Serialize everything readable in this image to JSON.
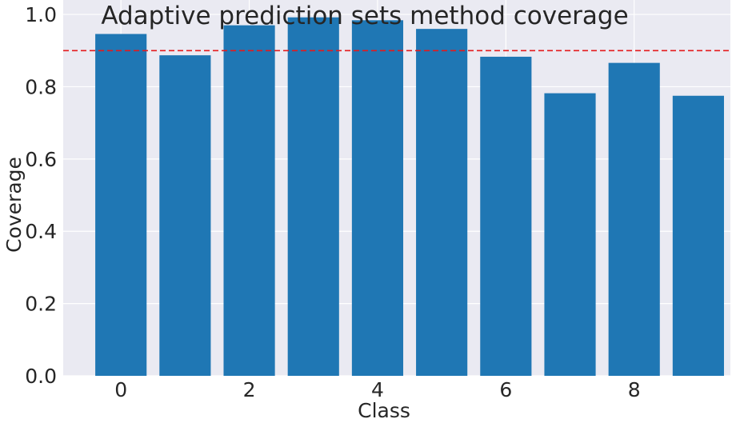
{
  "chart_data": {
    "type": "bar",
    "title": "Adaptive prediction sets method coverage",
    "xlabel": "Class",
    "ylabel": "Coverage",
    "categories": [
      0,
      1,
      2,
      3,
      4,
      5,
      6,
      7,
      8,
      9
    ],
    "values": [
      0.946,
      0.887,
      0.97,
      0.992,
      0.984,
      0.96,
      0.883,
      0.782,
      0.866,
      0.775
    ],
    "xticks": [
      "0",
      "2",
      "4",
      "6",
      "8"
    ],
    "xtick_values": [
      0,
      2,
      4,
      6,
      8
    ],
    "yticks": [
      "0.0",
      "0.2",
      "0.4",
      "0.6",
      "0.8",
      "1.0"
    ],
    "ytick_values": [
      0.0,
      0.2,
      0.4,
      0.6,
      0.8,
      1.0
    ],
    "ylim": [
      0,
      1.04
    ],
    "xlim": [
      -0.9,
      9.5
    ],
    "reference_line": {
      "value": 0.9,
      "style": "dashed",
      "color": "#e41a1c"
    },
    "bar_color": "#1f77b4",
    "background_color": "#eaeaf2",
    "grid": true
  }
}
